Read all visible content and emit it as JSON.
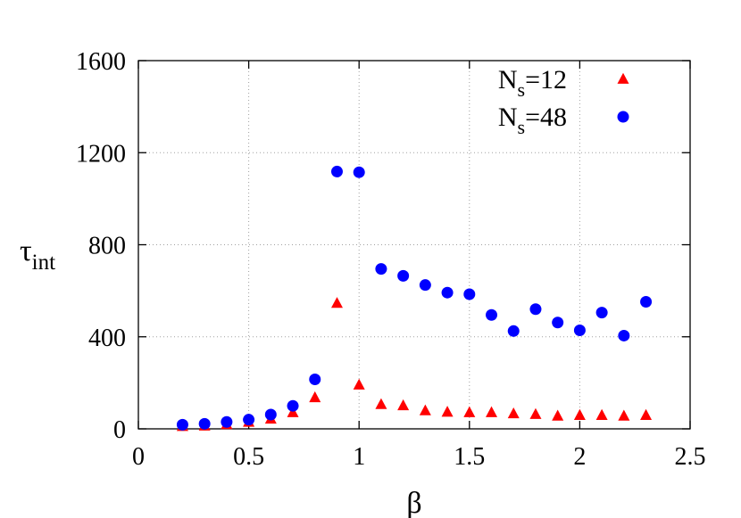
{
  "chart_data": {
    "type": "scatter",
    "xlabel": "β",
    "ylabel": {
      "main": "τ",
      "sub": "int"
    },
    "xlim": [
      0,
      2.5
    ],
    "ylim": [
      0,
      1600
    ],
    "xticks": [
      0,
      0.5,
      1,
      1.5,
      2,
      2.5
    ],
    "xtick_labels": [
      "0",
      "0.5",
      "1",
      "1.5",
      "2",
      "2.5"
    ],
    "yticks": [
      0,
      400,
      800,
      1200,
      1600
    ],
    "ytick_labels": [
      "0",
      "400",
      "800",
      "1200",
      "1600"
    ],
    "grid": true,
    "legend_position": "top-right",
    "series": [
      {
        "name": "N_s=12",
        "label_main": "N",
        "label_sub": "s",
        "label_rest": "=12",
        "marker": "triangle",
        "color": "#ff0000",
        "x": [
          0.2,
          0.3,
          0.4,
          0.5,
          0.6,
          0.7,
          0.8,
          0.9,
          1.0,
          1.1,
          1.2,
          1.3,
          1.4,
          1.5,
          1.6,
          1.7,
          1.8,
          1.9,
          2.0,
          2.1,
          2.2,
          2.3
        ],
        "y": [
          10,
          12,
          18,
          28,
          42,
          70,
          135,
          545,
          190,
          105,
          100,
          78,
          72,
          70,
          70,
          65,
          62,
          55,
          58,
          58,
          55,
          58
        ]
      },
      {
        "name": "N_s=48",
        "label_main": "N",
        "label_sub": "s",
        "label_rest": "=48",
        "marker": "circle",
        "color": "#0000ff",
        "x": [
          0.2,
          0.3,
          0.4,
          0.5,
          0.6,
          0.7,
          0.8,
          0.9,
          1.0,
          1.1,
          1.2,
          1.3,
          1.4,
          1.5,
          1.6,
          1.7,
          1.8,
          1.9,
          2.0,
          2.1,
          2.2,
          2.3
        ],
        "y": [
          18,
          22,
          30,
          40,
          62,
          100,
          215,
          1118,
          1115,
          695,
          665,
          625,
          592,
          585,
          495,
          425,
          520,
          462,
          428,
          505,
          405,
          552
        ]
      }
    ]
  }
}
